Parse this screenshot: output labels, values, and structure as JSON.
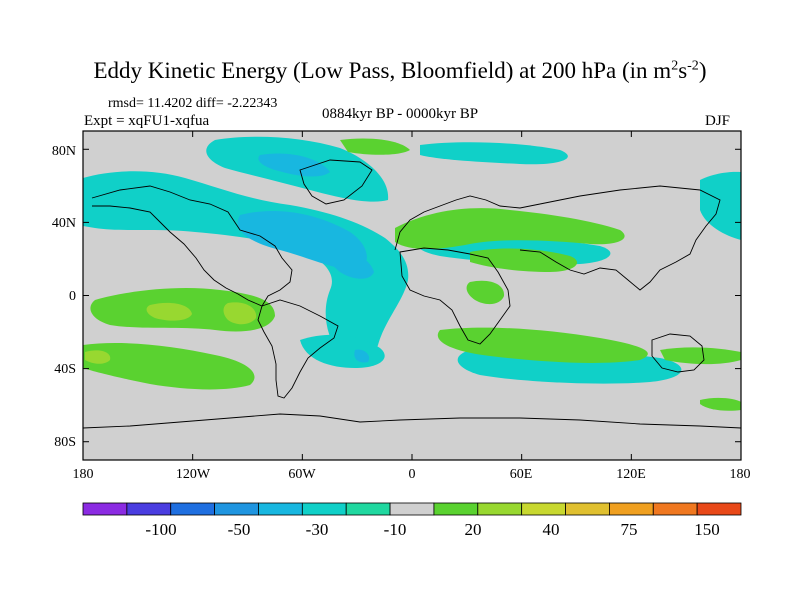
{
  "title": {
    "main": "Eddy Kinetic Energy (Low Pass, Bloomfield) at 200 hPa (in m",
    "sup1": "2",
    "mid": "s",
    "sup2": "-2",
    "end": ")"
  },
  "header": {
    "rmsd": "rmsd= 11.4202 diff= -2.22343",
    "expt": "Expt = xqFU1-xqfua",
    "period": "0884kyr BP - 0000kyr BP",
    "season": "DJF"
  },
  "axes": {
    "lat_labels": [
      "80N",
      "40N",
      "0",
      "40S",
      "80S"
    ],
    "lon_labels": [
      "180",
      "120W",
      "60W",
      "0",
      "60E",
      "120E",
      "180"
    ]
  },
  "colorbar": {
    "labels": [
      "-100",
      "-50",
      "-30",
      "-10",
      "20",
      "40",
      "75",
      "150"
    ],
    "colors": [
      "#8b2be2",
      "#4a3de0",
      "#1f6fe0",
      "#1f95e0",
      "#18b7e0",
      "#10d0c8",
      "#20d8a0",
      "#d0d0d0",
      "#5ad230",
      "#98d830",
      "#c8d830",
      "#e0c030",
      "#f0a020",
      "#f07820",
      "#e84818"
    ]
  },
  "map_colors": {
    "background": "#d0d0d0",
    "cyan": "#10d0c8",
    "sky": "#18b7e0",
    "blue": "#1f95e0",
    "green": "#5ad230",
    "lime": "#98d830"
  }
}
